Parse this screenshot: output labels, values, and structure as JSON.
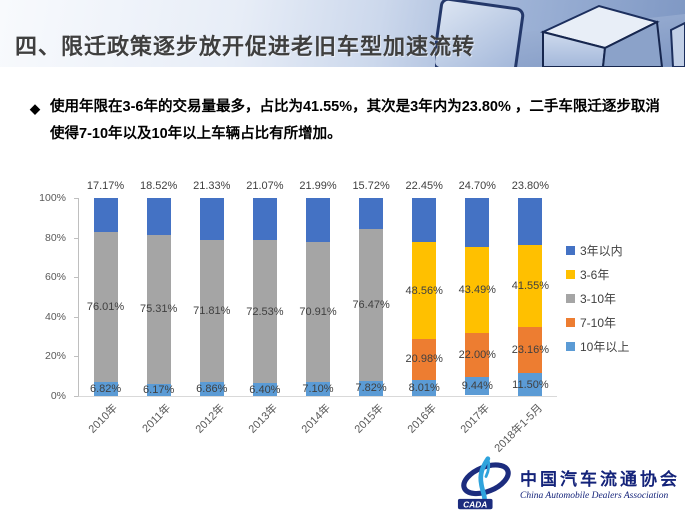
{
  "header": {
    "title": "四、限迁政策逐步放开促进老旧车型加速流转"
  },
  "bullet": {
    "icon": "◆",
    "text": "使用年限在3-6年的交易量最多，占比为41.55%，其次是3年内为23.80% ，二手车限迁逐步取消使得7-10年以及10年以上车辆占比有所增加。"
  },
  "chart_data": {
    "type": "bar",
    "stacked": true,
    "unit": "percent",
    "categories": [
      "2010年",
      "2011年",
      "2012年",
      "2013年",
      "2014年",
      "2015年",
      "2016年",
      "2017年",
      "2018年1-5月"
    ],
    "series": [
      {
        "name": "3年以内",
        "color": "#4472C4",
        "label_position": "above",
        "values": [
          17.17,
          18.52,
          21.33,
          21.07,
          21.99,
          15.72,
          22.45,
          24.7,
          23.8
        ]
      },
      {
        "name": "3-6年",
        "color": "#FFC000",
        "label_position": "center",
        "values": [
          null,
          null,
          null,
          null,
          null,
          null,
          48.56,
          43.49,
          41.55
        ]
      },
      {
        "name": "3-10年",
        "color": "#A5A5A5",
        "label_position": "center",
        "values": [
          76.01,
          75.31,
          71.81,
          72.53,
          70.91,
          76.47,
          null,
          null,
          null
        ]
      },
      {
        "name": "7-10年",
        "color": "#ED7D31",
        "label_position": "center",
        "values": [
          null,
          null,
          null,
          null,
          null,
          null,
          20.98,
          22.0,
          23.16
        ]
      },
      {
        "name": "10年以上",
        "color": "#5B9BD5",
        "label_position": "center",
        "values": [
          6.82,
          6.17,
          6.86,
          6.4,
          7.1,
          7.82,
          8.01,
          9.44,
          11.5
        ]
      }
    ],
    "y_ticks": [
      "100%",
      "80%",
      "60%",
      "40%",
      "20%",
      "0%"
    ],
    "ylim": [
      0,
      100
    ],
    "gridlines": false,
    "legend_position": "right"
  },
  "footer": {
    "logo_abbr": "CADA",
    "org_cn": "中国汽车流通协会",
    "org_en": "China Automobile Dealers Association"
  }
}
